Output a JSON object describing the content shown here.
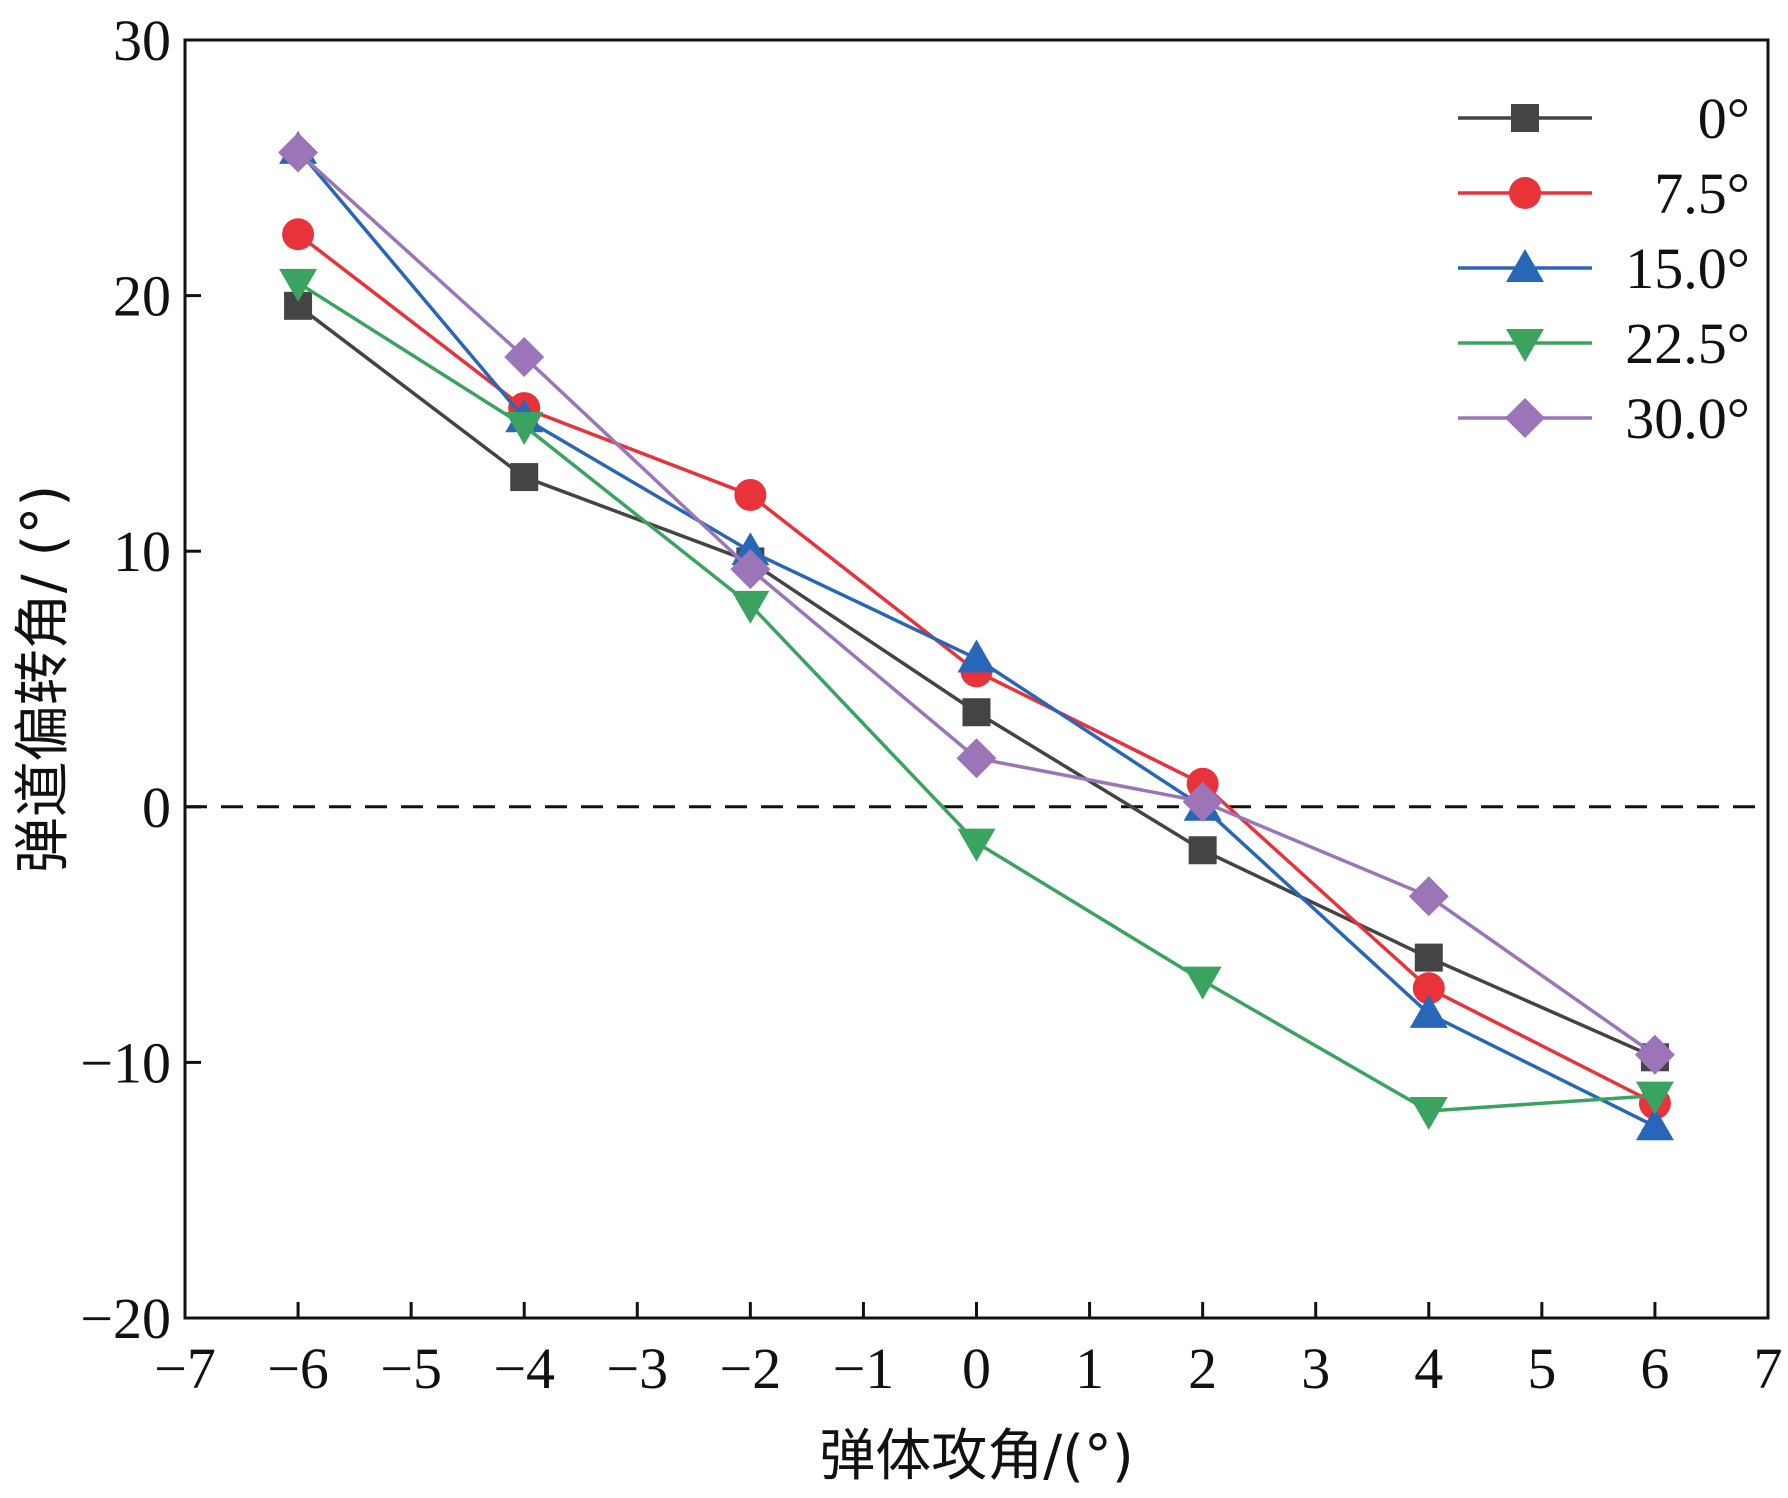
{
  "chart_data": {
    "type": "line",
    "title": "",
    "xlabel": "弹体攻角/(°)",
    "ylabel": "弹道偏转角/ (°)",
    "xlim": [
      -7,
      7
    ],
    "ylim": [
      -20,
      30
    ],
    "x_ticks": [
      -7,
      -6,
      -5,
      -4,
      -3,
      -2,
      -1,
      0,
      1,
      2,
      3,
      4,
      5,
      6,
      7
    ],
    "x_tick_labels": [
      "−7",
      "−6",
      "−5",
      "−4",
      "−3",
      "−2",
      "−1",
      "0",
      "1",
      "2",
      "3",
      "4",
      "5",
      "6",
      "7"
    ],
    "y_ticks": [
      -20,
      -10,
      0,
      10,
      20,
      30
    ],
    "y_tick_labels": [
      "−20",
      "−10",
      "0",
      "10",
      "20",
      "30"
    ],
    "grid": false,
    "legend_position": "top-right",
    "reference_line": {
      "y": 0,
      "style": "dashed",
      "color": "#111111"
    },
    "x": [
      -6,
      -4,
      -2,
      0,
      2,
      4,
      6
    ],
    "series": [
      {
        "name": "0°",
        "color": "#444444",
        "marker": "square",
        "values": [
          19.6,
          12.9,
          9.6,
          3.7,
          -1.7,
          -5.9,
          -9.8
        ]
      },
      {
        "name": "7.5°",
        "color": "#e8333a",
        "marker": "circle",
        "values": [
          22.4,
          15.6,
          12.2,
          5.3,
          0.9,
          -7.1,
          -11.6
        ]
      },
      {
        "name": "15.0°",
        "color": "#2867b7",
        "marker": "triangle-up",
        "values": [
          25.7,
          15.2,
          10.0,
          5.8,
          0.0,
          -8.1,
          -12.5
        ]
      },
      {
        "name": "22.5°",
        "color": "#3aa360",
        "marker": "triangle-down",
        "values": [
          20.5,
          14.9,
          7.9,
          -1.4,
          -6.8,
          -11.9,
          -11.3
        ]
      },
      {
        "name": "30.0°",
        "color": "#9b75b8",
        "marker": "diamond",
        "values": [
          25.6,
          17.6,
          9.3,
          1.9,
          0.2,
          -3.5,
          -9.7
        ]
      }
    ]
  }
}
